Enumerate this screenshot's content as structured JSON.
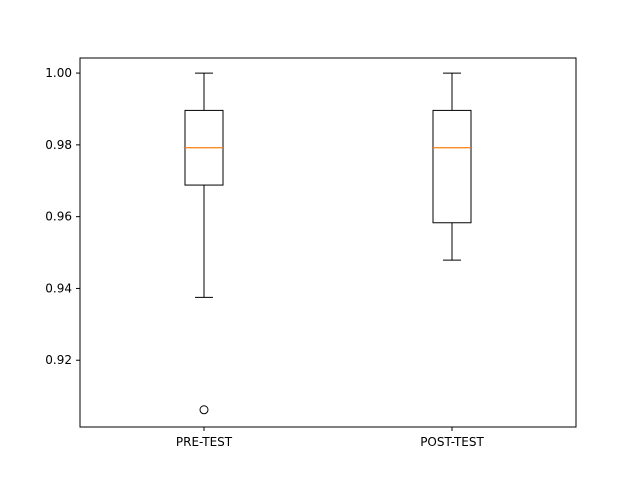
{
  "chart_data": {
    "type": "box",
    "title": "",
    "xlabel": "",
    "ylabel": "",
    "ylim": [
      0.9014,
      1.0042
    ],
    "yticks": [
      0.92,
      0.94,
      0.96,
      0.98,
      1.0
    ],
    "ytick_labels": [
      "0.92",
      "0.94",
      "0.96",
      "0.98",
      "1.00"
    ],
    "categories": [
      "PRE-TEST",
      "POST-TEST"
    ],
    "boxes": [
      {
        "name": "PRE-TEST",
        "whisker_low": 0.9375,
        "q1": 0.9688,
        "median": 0.9792,
        "q3": 0.9896,
        "whisker_high": 1.0,
        "outliers": [
          0.9062
        ]
      },
      {
        "name": "POST-TEST",
        "whisker_low": 0.9479,
        "q1": 0.9583,
        "median": 0.9792,
        "q3": 0.9896,
        "whisker_high": 1.0,
        "outliers": []
      }
    ],
    "grid": false,
    "colors": {
      "box": "#000000",
      "median": "#ff7f0e",
      "outlier": "#000000"
    }
  }
}
